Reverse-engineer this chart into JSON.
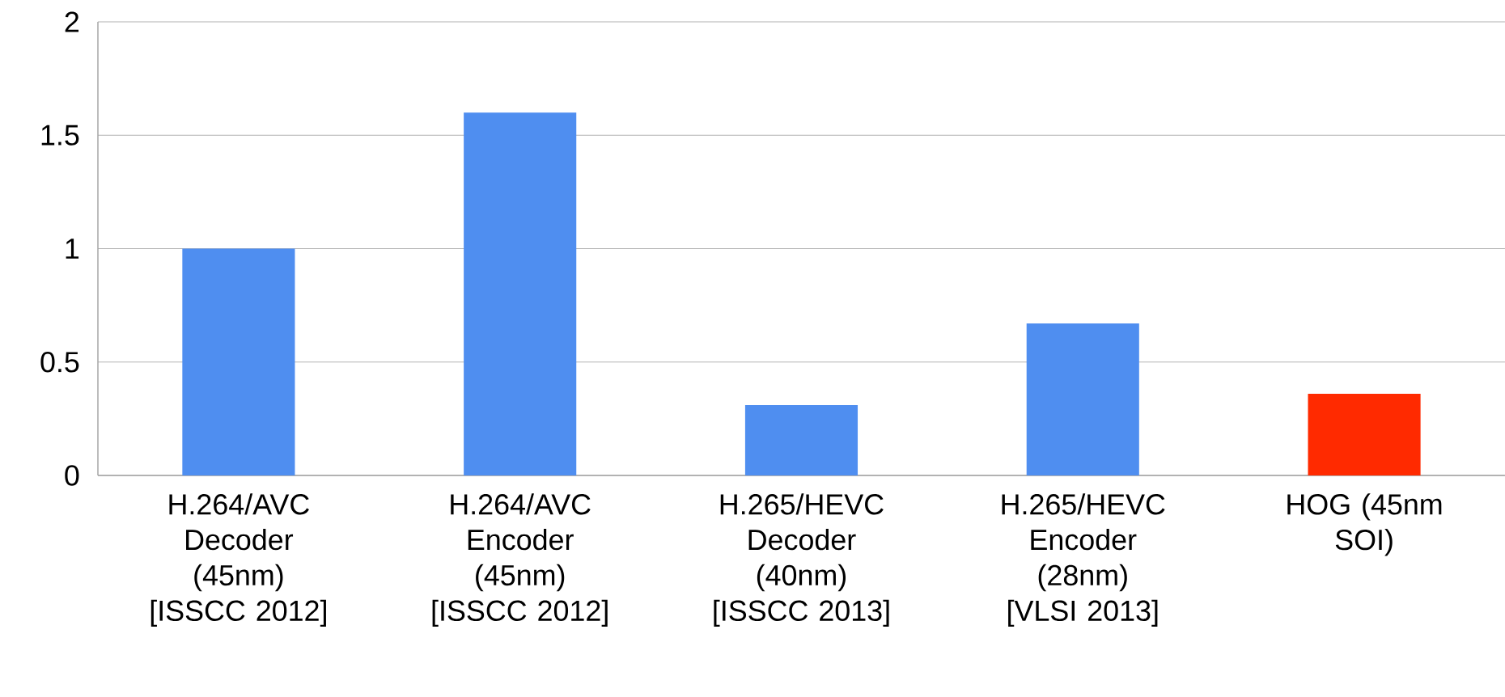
{
  "chart_data": {
    "type": "bar",
    "categories": [
      "H.264/AVC Decoder (45nm) [ISSCC 2012]",
      "H.264/AVC Encoder (45nm) [ISSCC 2012]",
      "H.265/HEVC Decoder (40nm) [ISSCC 2013]",
      "H.265/HEVC Encoder (28nm) [VLSI 2013]",
      "HOG (45nm SOI)"
    ],
    "values": [
      1.0,
      1.6,
      0.31,
      0.67,
      0.36
    ],
    "colors": [
      "#4f8ef0",
      "#4f8ef0",
      "#4f8ef0",
      "#4f8ef0",
      "#ff2a00"
    ],
    "ylim": [
      0,
      2
    ],
    "yticks": [
      0,
      0.5,
      1,
      1.5,
      2
    ],
    "grid": "y"
  }
}
